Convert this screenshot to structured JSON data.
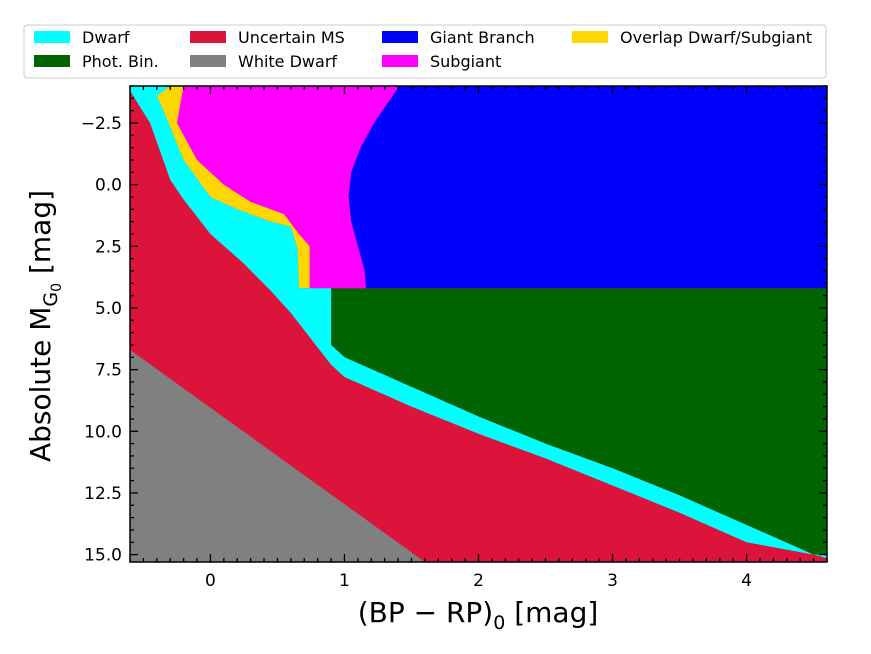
{
  "chart_data": {
    "type": "area",
    "title": "",
    "xlabel": {
      "main": "(BP − RP)",
      "sub": "0",
      "unit": " [mag]"
    },
    "ylabel": {
      "main": "Absolute M",
      "sub": "G",
      "subsub": "0",
      "unit": " [mag]"
    },
    "xlim": [
      -0.6,
      4.6
    ],
    "ylim": [
      15.3,
      -4.0
    ],
    "y_inverted": true,
    "x_ticks": [
      0,
      1,
      2,
      3,
      4
    ],
    "x_tick_labels": [
      "0",
      "1",
      "2",
      "3",
      "4"
    ],
    "y_ticks": [
      -2.5,
      0.0,
      2.5,
      5.0,
      7.5,
      10.0,
      12.5,
      15.0
    ],
    "y_tick_labels": [
      "−2.5",
      "0.0",
      "2.5",
      "5.0",
      "7.5",
      "10.0",
      "12.5",
      "15.0"
    ],
    "legend_position": "top",
    "legend": [
      {
        "key": "dwarf",
        "label": "Dwarf",
        "color": "#00ffff"
      },
      {
        "key": "photbin",
        "label": "Phot. Bin.",
        "color": "#006400"
      },
      {
        "key": "uncertain",
        "label": "Uncertain MS",
        "color": "#dc143c"
      },
      {
        "key": "whitedwarf",
        "label": "White Dwarf",
        "color": "#808080"
      },
      {
        "key": "giant",
        "label": "Giant Branch",
        "color": "#0000ff"
      },
      {
        "key": "subgiant",
        "label": "Subgiant",
        "color": "#ff00ff"
      },
      {
        "key": "overlap",
        "label": "Overlap Dwarf/Subgiant",
        "color": "#ffd700"
      }
    ],
    "regions": [
      {
        "key": "uncertain",
        "color": "#dc143c",
        "points": [
          [
            -0.6,
            -4.0
          ],
          [
            4.6,
            -4.0
          ],
          [
            4.6,
            15.3
          ],
          [
            -0.6,
            15.3
          ]
        ]
      },
      {
        "key": "photbin",
        "color": "#006400",
        "points": [
          [
            0.9,
            4.2
          ],
          [
            4.6,
            4.2
          ],
          [
            4.6,
            15.0
          ],
          [
            4.5,
            15.0
          ],
          [
            4.0,
            13.8
          ],
          [
            3.5,
            12.6
          ],
          [
            3.0,
            11.5
          ],
          [
            2.5,
            10.5
          ],
          [
            2.0,
            9.4
          ],
          [
            1.5,
            8.2
          ],
          [
            1.0,
            7.0
          ],
          [
            0.9,
            6.5
          ]
        ]
      },
      {
        "key": "giant",
        "color": "#0000ff",
        "points": [
          [
            1.41,
            -4.0
          ],
          [
            4.6,
            -4.0
          ],
          [
            4.6,
            4.2
          ],
          [
            1.16,
            4.2
          ],
          [
            1.15,
            3.5
          ],
          [
            1.1,
            2.5
          ],
          [
            1.05,
            1.5
          ],
          [
            1.03,
            0.5
          ],
          [
            1.05,
            -0.5
          ],
          [
            1.12,
            -1.5
          ],
          [
            1.22,
            -2.5
          ],
          [
            1.32,
            -3.3
          ]
        ]
      },
      {
        "key": "subgiant",
        "color": "#ff00ff",
        "points": [
          [
            -0.4,
            -4.0
          ],
          [
            1.41,
            -4.0
          ],
          [
            1.32,
            -3.3
          ],
          [
            1.22,
            -2.5
          ],
          [
            1.12,
            -1.5
          ],
          [
            1.05,
            -0.5
          ],
          [
            1.03,
            0.5
          ],
          [
            1.05,
            1.5
          ],
          [
            1.1,
            2.5
          ],
          [
            1.15,
            3.5
          ],
          [
            1.16,
            4.2
          ],
          [
            0.74,
            4.2
          ],
          [
            0.74,
            2.5
          ],
          [
            0.66,
            2.0
          ],
          [
            0.55,
            1.2
          ],
          [
            0.3,
            0.7
          ],
          [
            0.1,
            0.0
          ],
          [
            -0.1,
            -1.0
          ],
          [
            -0.25,
            -2.5
          ]
        ]
      },
      {
        "key": "overlap",
        "color": "#ffd700",
        "points": [
          [
            -0.3,
            -4.0
          ],
          [
            -0.2,
            -4.0
          ],
          [
            -0.25,
            -2.5
          ],
          [
            -0.1,
            -1.0
          ],
          [
            0.1,
            0.0
          ],
          [
            0.3,
            0.7
          ],
          [
            0.55,
            1.2
          ],
          [
            0.66,
            2.0
          ],
          [
            0.74,
            2.5
          ],
          [
            0.74,
            4.2
          ],
          [
            0.66,
            4.2
          ],
          [
            0.65,
            2.6
          ],
          [
            0.6,
            1.7
          ],
          [
            0.45,
            1.5
          ],
          [
            0.2,
            1.0
          ],
          [
            0.0,
            0.5
          ],
          [
            -0.2,
            -1.0
          ],
          [
            -0.35,
            -3.0
          ],
          [
            -0.4,
            -3.6
          ]
        ]
      },
      {
        "key": "dwarf",
        "color": "#00ffff",
        "points": [
          [
            -0.6,
            -4.0
          ],
          [
            -0.3,
            -4.0
          ],
          [
            -0.4,
            -3.6
          ],
          [
            -0.35,
            -3.0
          ],
          [
            -0.2,
            -1.0
          ],
          [
            0.0,
            0.5
          ],
          [
            0.2,
            1.0
          ],
          [
            0.45,
            1.5
          ],
          [
            0.6,
            1.7
          ],
          [
            0.65,
            2.6
          ],
          [
            0.66,
            4.2
          ],
          [
            0.9,
            4.2
          ],
          [
            0.9,
            6.5
          ],
          [
            1.0,
            7.0
          ],
          [
            1.5,
            8.2
          ],
          [
            2.0,
            9.4
          ],
          [
            2.5,
            10.5
          ],
          [
            3.0,
            11.5
          ],
          [
            3.5,
            12.6
          ],
          [
            4.0,
            13.8
          ],
          [
            4.5,
            15.0
          ],
          [
            4.6,
            15.0
          ],
          [
            4.6,
            15.15
          ],
          [
            4.5,
            15.0
          ],
          [
            4.0,
            14.5
          ],
          [
            3.5,
            13.3
          ],
          [
            3.0,
            12.2
          ],
          [
            2.5,
            11.1
          ],
          [
            2.0,
            10.1
          ],
          [
            1.5,
            9.0
          ],
          [
            1.0,
            7.8
          ],
          [
            0.9,
            7.3
          ],
          [
            0.6,
            5.2
          ],
          [
            0.45,
            4.3
          ],
          [
            0.25,
            3.2
          ],
          [
            0.0,
            2.0
          ],
          [
            -0.2,
            0.6
          ],
          [
            -0.3,
            -0.2
          ],
          [
            -0.45,
            -2.5
          ],
          [
            -0.6,
            -3.8
          ]
        ]
      },
      {
        "key": "whitedwarf",
        "color": "#808080",
        "points": [
          [
            -0.6,
            6.7
          ],
          [
            1.6,
            15.3
          ],
          [
            -0.6,
            15.3
          ]
        ]
      }
    ]
  }
}
